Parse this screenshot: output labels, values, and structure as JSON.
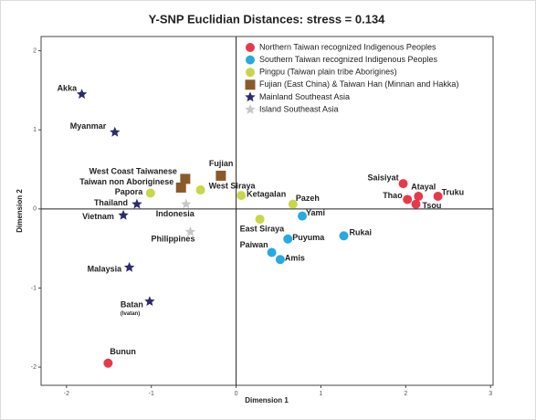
{
  "chart_data": {
    "type": "scatter",
    "title": "Y-SNP Euclidian Distances: stress = 0.134",
    "x_label": "Dimension 1",
    "y_label": "Dimension 2",
    "xlim": [
      -2.3,
      3.03
    ],
    "ylim": [
      -2.23,
      2.18
    ],
    "xticks": [
      -2,
      -1,
      0,
      1,
      2,
      3
    ],
    "yticks": [
      -2,
      -1,
      0,
      1,
      2
    ],
    "grid": false,
    "legend": "upper right",
    "series": [
      {
        "name": "Northern Taiwan recognized Indigenous Peoples",
        "color": "#e8394a",
        "marker": "circle",
        "labels": [
          "Saisiyat",
          "Atayal",
          "Thao",
          "Tsou",
          "Truku",
          "Bunun"
        ],
        "x": [
          1.97,
          2.15,
          2.02,
          2.12,
          2.38,
          -1.51
        ],
        "values": [
          0.32,
          0.16,
          0.12,
          0.06,
          0.16,
          -1.95
        ]
      },
      {
        "name": "Southern Taiwan recognized Indigenous Peoples",
        "color": "#27a9e1",
        "marker": "circle",
        "labels": [
          "Yami",
          "Rukai",
          "Puyuma",
          "Paiwan",
          "Amis"
        ],
        "x": [
          0.78,
          1.27,
          0.61,
          0.42,
          0.52
        ],
        "values": [
          -0.09,
          -0.34,
          -0.38,
          -0.55,
          -0.64
        ]
      },
      {
        "name": "Pingpu (Taiwan plain tribe Aborigines)",
        "color": "#c8d64a",
        "marker": "circle",
        "labels": [
          "Papora",
          "West Siraya",
          "Ketagalan",
          "Pazeh",
          "East Siraya"
        ],
        "x": [
          -1.01,
          -0.42,
          0.06,
          0.67,
          0.28
        ],
        "values": [
          0.2,
          0.24,
          0.17,
          0.06,
          -0.13
        ]
      },
      {
        "name": "Fujian (East China) & Taiwan Han (Minnan and Hakka)",
        "color": "#8b5a2b",
        "marker": "square",
        "labels": [
          "Fujian",
          "West Coast Taiwanese",
          "Taiwan non Aboriginese"
        ],
        "x": [
          -0.18,
          -0.6,
          -0.65
        ],
        "values": [
          0.42,
          0.38,
          0.27
        ]
      },
      {
        "name": "Mainland Southeast Asia",
        "color": "#2e2a6e",
        "marker": "star",
        "labels": [
          "Akka",
          "Myanmar",
          "Thailand",
          "Vietnam",
          "Malaysia",
          "Batan"
        ],
        "sublabels": [
          null,
          null,
          null,
          null,
          null,
          "(Ivatan)"
        ],
        "x": [
          -1.82,
          -1.43,
          -1.17,
          -1.33,
          -1.26,
          -1.02
        ],
        "values": [
          1.45,
          0.97,
          0.06,
          -0.08,
          -0.74,
          -1.17
        ]
      },
      {
        "name": "Island Southeast Asia",
        "color": "#c8c8c8",
        "marker": "star",
        "labels": [
          "Indonesia",
          "Philippines"
        ],
        "x": [
          -0.59,
          -0.54
        ],
        "values": [
          0.06,
          -0.29
        ]
      }
    ]
  }
}
